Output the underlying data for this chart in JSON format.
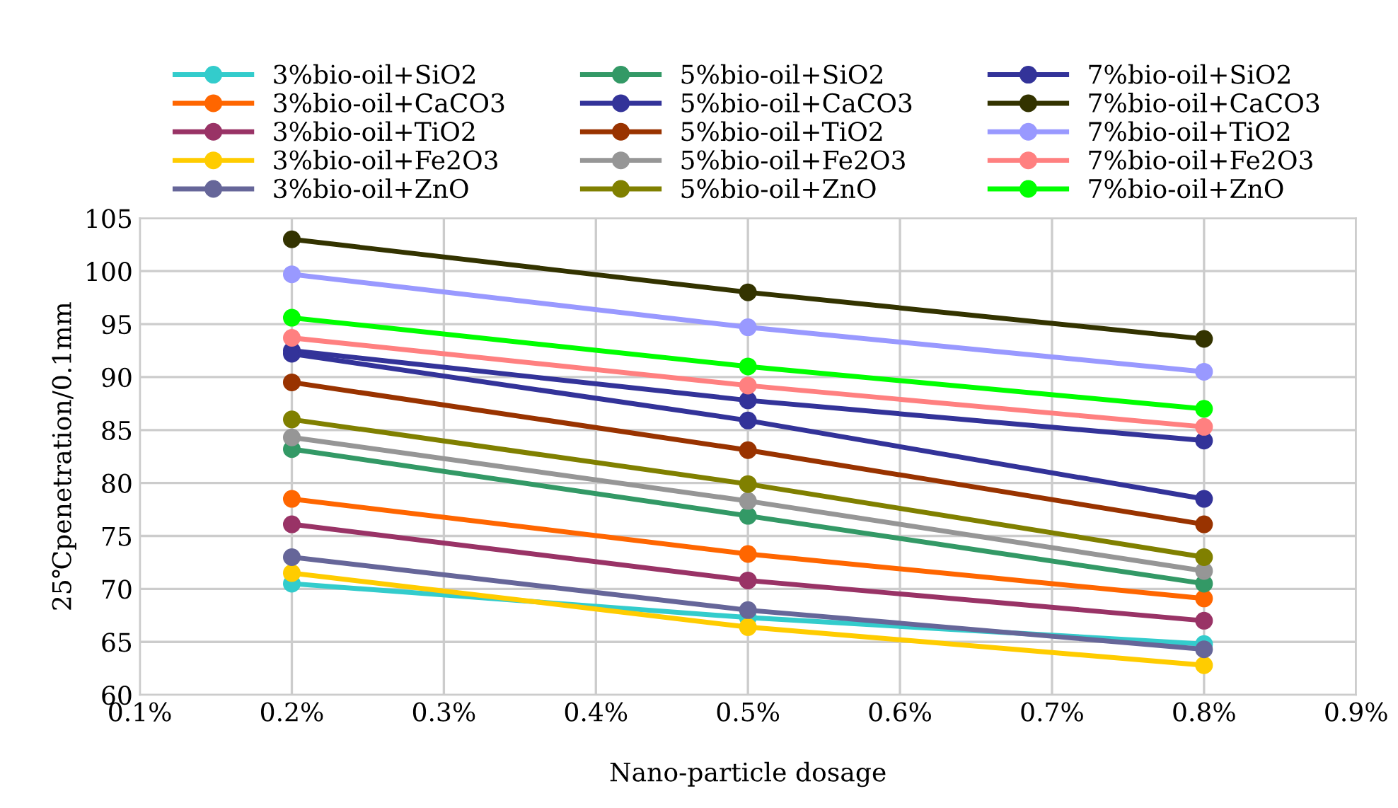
{
  "chart_data": {
    "type": "line",
    "xlabel": "Nano-particle dosage",
    "ylabel": "25℃penetration/0.1mm",
    "x": [
      0.2,
      0.5,
      0.8
    ],
    "xlim": [
      0.1,
      0.9
    ],
    "xticks": [
      {
        "value": 0.1,
        "label": "0.1%"
      },
      {
        "value": 0.2,
        "label": "0.2%"
      },
      {
        "value": 0.3,
        "label": "0.3%"
      },
      {
        "value": 0.4,
        "label": "0.4%"
      },
      {
        "value": 0.5,
        "label": "0.5%"
      },
      {
        "value": 0.6,
        "label": "0.6%"
      },
      {
        "value": 0.7,
        "label": "0.7%"
      },
      {
        "value": 0.8,
        "label": "0.8%"
      },
      {
        "value": 0.9,
        "label": "0.9%"
      }
    ],
    "ylim": [
      60,
      105
    ],
    "yticks": [
      60,
      65,
      70,
      75,
      80,
      85,
      90,
      95,
      100,
      105
    ],
    "grid": true,
    "legend": "top",
    "marker": "circle",
    "line_style": "solid",
    "series": [
      {
        "name": "3%bio-oil+SiO2",
        "color": "#33cccc",
        "values": [
          70.5,
          67.3,
          64.8
        ]
      },
      {
        "name": "3%bio-oil+CaCO3",
        "color": "#ff6600",
        "values": [
          78.5,
          73.3,
          69.1
        ]
      },
      {
        "name": "3%bio-oil+TiO2",
        "color": "#993366",
        "values": [
          76.1,
          70.8,
          67.0
        ]
      },
      {
        "name": "3%bio-oil+Fe2O3",
        "color": "#ffcc00",
        "values": [
          71.5,
          66.4,
          62.8
        ]
      },
      {
        "name": "3%bio-oil+ZnO",
        "color": "#666699",
        "values": [
          73.0,
          68.0,
          64.3
        ]
      },
      {
        "name": "5%bio-oil+SiO2",
        "color": "#339966",
        "values": [
          83.2,
          76.9,
          70.5
        ]
      },
      {
        "name": "5%bio-oil+CaCO3",
        "color": "#333399",
        "values": [
          92.5,
          87.8,
          84.0
        ]
      },
      {
        "name": "5%bio-oil+TiO2",
        "color": "#993300",
        "values": [
          89.5,
          83.1,
          76.1
        ]
      },
      {
        "name": "5%bio-oil+Fe2O3",
        "color": "#969696",
        "values": [
          84.3,
          78.3,
          71.7
        ]
      },
      {
        "name": "5%bio-oil+ZnO",
        "color": "#808000",
        "values": [
          86.0,
          79.9,
          73.0
        ]
      },
      {
        "name": "7%bio-oil+SiO2",
        "color": "#333399",
        "values": [
          92.2,
          85.9,
          78.5
        ]
      },
      {
        "name": "7%bio-oil+CaCO3",
        "color": "#333300",
        "values": [
          103.0,
          98.0,
          93.6
        ]
      },
      {
        "name": "7%bio-oil+TiO2",
        "color": "#9999ff",
        "values": [
          99.7,
          94.7,
          90.5
        ]
      },
      {
        "name": "7%bio-oil+Fe2O3",
        "color": "#ff8080",
        "values": [
          93.7,
          89.2,
          85.3
        ]
      },
      {
        "name": "7%bio-oil+ZnO",
        "color": "#00ff00",
        "values": [
          95.6,
          91.0,
          87.0
        ]
      }
    ]
  }
}
